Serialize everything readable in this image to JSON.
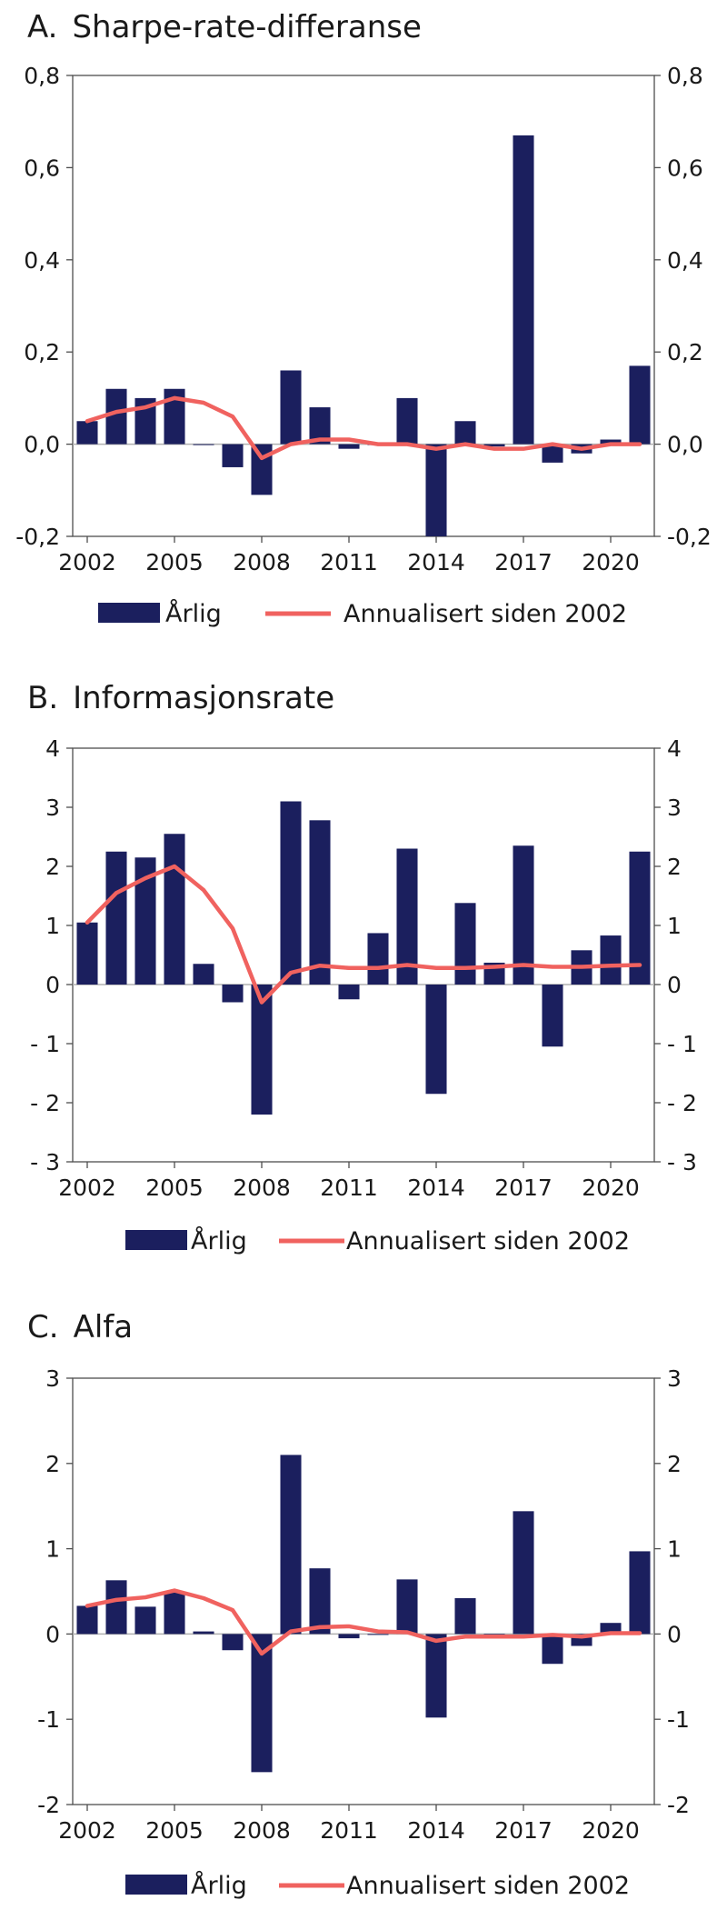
{
  "colors": {
    "bar": "#1b1f5e",
    "line": "#f0625f",
    "axis": "#4d4d4d",
    "zero": "#b0b0b0"
  },
  "legend": {
    "bar_label": "Årlig",
    "line_label": "Annualisert siden 2002"
  },
  "x_tick_labels": [
    "2002",
    "2005",
    "2008",
    "2011",
    "2014",
    "2017",
    "2020"
  ],
  "chart_data": [
    {
      "type": "bar",
      "panel_letter": "A.",
      "title": "Sharpe-rate-differanse",
      "categories": [
        "2002",
        "2003",
        "2004",
        "2005",
        "2006",
        "2007",
        "2008",
        "2009",
        "2010",
        "2011",
        "2012",
        "2013",
        "2014",
        "2015",
        "2016",
        "2017",
        "2018",
        "2019",
        "2020",
        "2021"
      ],
      "ylim": [
        -0.2,
        0.8
      ],
      "y_ticks": [
        -0.2,
        0.0,
        0.2,
        0.4,
        0.6,
        0.8
      ],
      "y_tick_labels": [
        "-0,2",
        "0,0",
        "0,2",
        "0,4",
        "0,6",
        "0,8"
      ],
      "series": [
        {
          "name": "Årlig",
          "type": "bar",
          "values": [
            0.05,
            0.12,
            0.1,
            0.12,
            0.0,
            -0.05,
            -0.11,
            0.16,
            0.08,
            -0.01,
            0.0,
            0.1,
            -0.21,
            0.05,
            -0.005,
            0.67,
            -0.04,
            -0.02,
            0.01,
            0.17
          ]
        },
        {
          "name": "Annualisert siden 2002",
          "type": "line",
          "values": [
            0.05,
            0.07,
            0.08,
            0.1,
            0.09,
            0.06,
            -0.03,
            0.0,
            0.01,
            0.01,
            0.0,
            0.0,
            -0.01,
            0.0,
            -0.01,
            -0.01,
            0.0,
            -0.01,
            0.0,
            0.0
          ]
        }
      ],
      "grid": false,
      "legend_position": "bottom"
    },
    {
      "type": "bar",
      "panel_letter": "B.",
      "title": "Informasjonsrate",
      "categories": [
        "2002",
        "2003",
        "2004",
        "2005",
        "2006",
        "2007",
        "2008",
        "2009",
        "2010",
        "2011",
        "2012",
        "2013",
        "2014",
        "2015",
        "2016",
        "2017",
        "2018",
        "2019",
        "2020",
        "2021"
      ],
      "ylim": [
        -3,
        4
      ],
      "y_ticks": [
        -3,
        -2,
        -1,
        0,
        1,
        2,
        3,
        4
      ],
      "y_tick_labels": [
        "- 3",
        "- 2",
        "- 1",
        "0",
        "1",
        "2",
        "3",
        "4"
      ],
      "series": [
        {
          "name": "Årlig",
          "type": "bar",
          "values": [
            1.05,
            2.25,
            2.15,
            2.55,
            0.35,
            -0.3,
            -2.2,
            3.1,
            2.78,
            -0.25,
            0.87,
            2.3,
            -1.85,
            1.38,
            0.37,
            2.35,
            -1.05,
            0.58,
            0.83,
            2.25
          ]
        },
        {
          "name": "Annualisert siden 2002",
          "type": "line",
          "values": [
            1.05,
            1.55,
            1.8,
            2.0,
            1.6,
            0.95,
            -0.3,
            0.2,
            0.32,
            0.28,
            0.28,
            0.33,
            0.28,
            0.28,
            0.3,
            0.33,
            0.3,
            0.3,
            0.32,
            0.33
          ]
        }
      ],
      "grid": false,
      "legend_position": "bottom"
    },
    {
      "type": "bar",
      "panel_letter": "C.",
      "title": "Alfa",
      "categories": [
        "2002",
        "2003",
        "2004",
        "2005",
        "2006",
        "2007",
        "2008",
        "2009",
        "2010",
        "2011",
        "2012",
        "2013",
        "2014",
        "2015",
        "2016",
        "2017",
        "2018",
        "2019",
        "2020",
        "2021"
      ],
      "ylim": [
        -2,
        3
      ],
      "y_ticks": [
        -2,
        -1,
        0,
        1,
        2,
        3
      ],
      "y_tick_labels": [
        "-2",
        "-1",
        "0",
        "1",
        "2",
        "3"
      ],
      "series": [
        {
          "name": "Årlig",
          "type": "bar",
          "values": [
            0.33,
            0.63,
            0.32,
            0.5,
            0.03,
            -0.19,
            -1.62,
            2.1,
            0.77,
            -0.05,
            0.0,
            0.64,
            -0.98,
            0.42,
            0.0,
            1.44,
            -0.35,
            -0.14,
            0.13,
            0.97
          ]
        },
        {
          "name": "Annualisert siden 2002",
          "type": "line",
          "values": [
            0.33,
            0.4,
            0.43,
            0.51,
            0.42,
            0.28,
            -0.23,
            0.03,
            0.08,
            0.09,
            0.03,
            0.02,
            -0.08,
            -0.03,
            -0.03,
            -0.03,
            -0.01,
            -0.03,
            0.01,
            0.01
          ]
        }
      ],
      "grid": false,
      "legend_position": "bottom"
    }
  ]
}
